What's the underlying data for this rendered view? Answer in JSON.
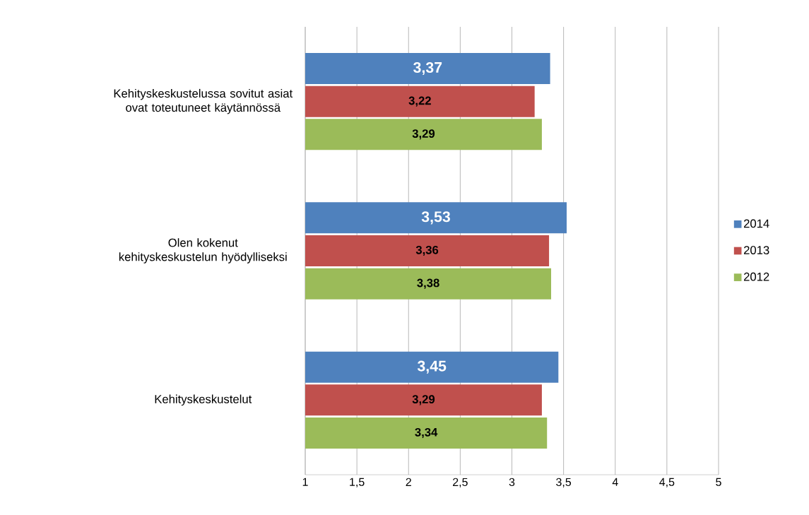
{
  "chart_data": {
    "type": "bar",
    "orientation": "horizontal",
    "categories": [
      "Kehityskeskustelussa sovitut asiat ovat toteutuneet käytännössä",
      "Olen kokenut kehityskeskustelun hyödylliseksi",
      "Kehityskeskustelut"
    ],
    "series": [
      {
        "name": "2014",
        "color": "#4f81bd",
        "values": [
          3.37,
          3.53,
          3.45
        ],
        "value_labels": [
          "3,37",
          "3,53",
          "3,45"
        ]
      },
      {
        "name": "2013",
        "color": "#c0504d",
        "values": [
          3.22,
          3.36,
          3.29
        ],
        "value_labels": [
          "3,22",
          "3,36",
          "3,29"
        ]
      },
      {
        "name": "2012",
        "color": "#9bbb59",
        "values": [
          3.29,
          3.38,
          3.34
        ],
        "value_labels": [
          "3,29",
          "3,38",
          "3,34"
        ]
      }
    ],
    "xlim": [
      1,
      5
    ],
    "xticks": [
      1,
      {
        "value": 1.5,
        "label": "1,5"
      },
      2,
      {
        "value": 2.5,
        "label": "2,5"
      },
      3,
      {
        "value": 3.5,
        "label": "3,5"
      },
      4,
      {
        "value": 4.5,
        "label": "4,5"
      },
      5
    ],
    "grid": "x",
    "legend": "right"
  }
}
